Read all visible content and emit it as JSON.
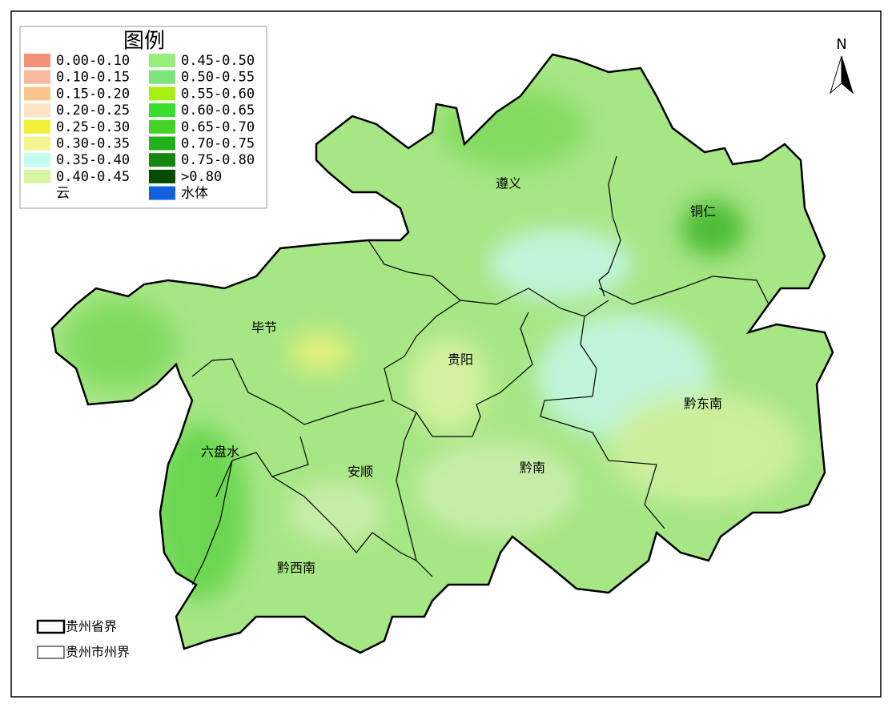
{
  "legend": {
    "title": "图例",
    "items": [
      {
        "label": "0.00-0.10",
        "color": "#f4917a"
      },
      {
        "label": "0.10-0.15",
        "color": "#f8b99c"
      },
      {
        "label": "0.15-0.20",
        "color": "#f9c48e"
      },
      {
        "label": "0.20-0.25",
        "color": "#fde2c6"
      },
      {
        "label": "0.25-0.30",
        "color": "#f0f03a"
      },
      {
        "label": "0.30-0.35",
        "color": "#f3f58e"
      },
      {
        "label": "0.35-0.40",
        "color": "#c4fbf1"
      },
      {
        "label": "0.40-0.45",
        "color": "#d8f5a3"
      },
      {
        "label": "云",
        "color": "#ffffff"
      },
      {
        "label": "0.45-0.50",
        "color": "#96ee7c"
      },
      {
        "label": "0.50-0.55",
        "color": "#78e67a"
      },
      {
        "label": "0.55-0.60",
        "color": "#a8ee12"
      },
      {
        "label": "0.60-0.65",
        "color": "#36df2c"
      },
      {
        "label": "0.65-0.70",
        "color": "#44d524"
      },
      {
        "label": "0.70-0.75",
        "color": "#22b11a"
      },
      {
        "label": "0.75-0.80",
        "color": "#13880c"
      },
      {
        "label": ">0.80",
        "color": "#004b00"
      },
      {
        "label": "水体",
        "color": "#1060e0"
      }
    ]
  },
  "regions": [
    {
      "label": "遵义"
    },
    {
      "label": "铜仁"
    },
    {
      "label": "毕节"
    },
    {
      "label": "贵阳"
    },
    {
      "label": "黔东南"
    },
    {
      "label": "六盘水"
    },
    {
      "label": "安顺"
    },
    {
      "label": "黔南"
    },
    {
      "label": "黔西南"
    }
  ],
  "boundaries": [
    "贵州省界",
    "贵州市州界"
  ],
  "north": "N"
}
